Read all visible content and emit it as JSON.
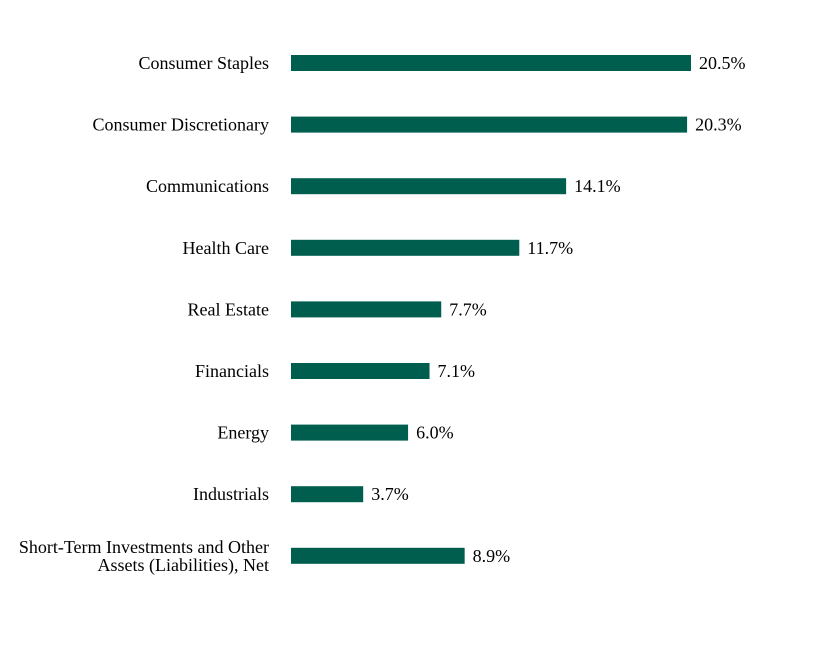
{
  "chart_data": {
    "type": "bar",
    "orientation": "horizontal",
    "categories": [
      [
        "Consumer Staples"
      ],
      [
        "Consumer Discretionary"
      ],
      [
        "Communications"
      ],
      [
        "Health Care"
      ],
      [
        "Real Estate"
      ],
      [
        "Financials"
      ],
      [
        "Energy"
      ],
      [
        "Industrials"
      ],
      [
        "Short-Term Investments and Other",
        "Assets (Liabilities), Net"
      ]
    ],
    "values": [
      20.5,
      20.3,
      14.1,
      11.7,
      7.7,
      7.1,
      6.0,
      3.7,
      8.9
    ],
    "value_labels": [
      "20.5%",
      "20.3%",
      "14.1%",
      "11.7%",
      "7.7%",
      "7.1%",
      "6.0%",
      "3.7%",
      "8.9%"
    ],
    "title": "",
    "xlabel": "",
    "ylabel": "",
    "xlim": [
      0,
      20.5
    ],
    "grid": false,
    "legend": "none",
    "bar_color": "#005e4f"
  }
}
